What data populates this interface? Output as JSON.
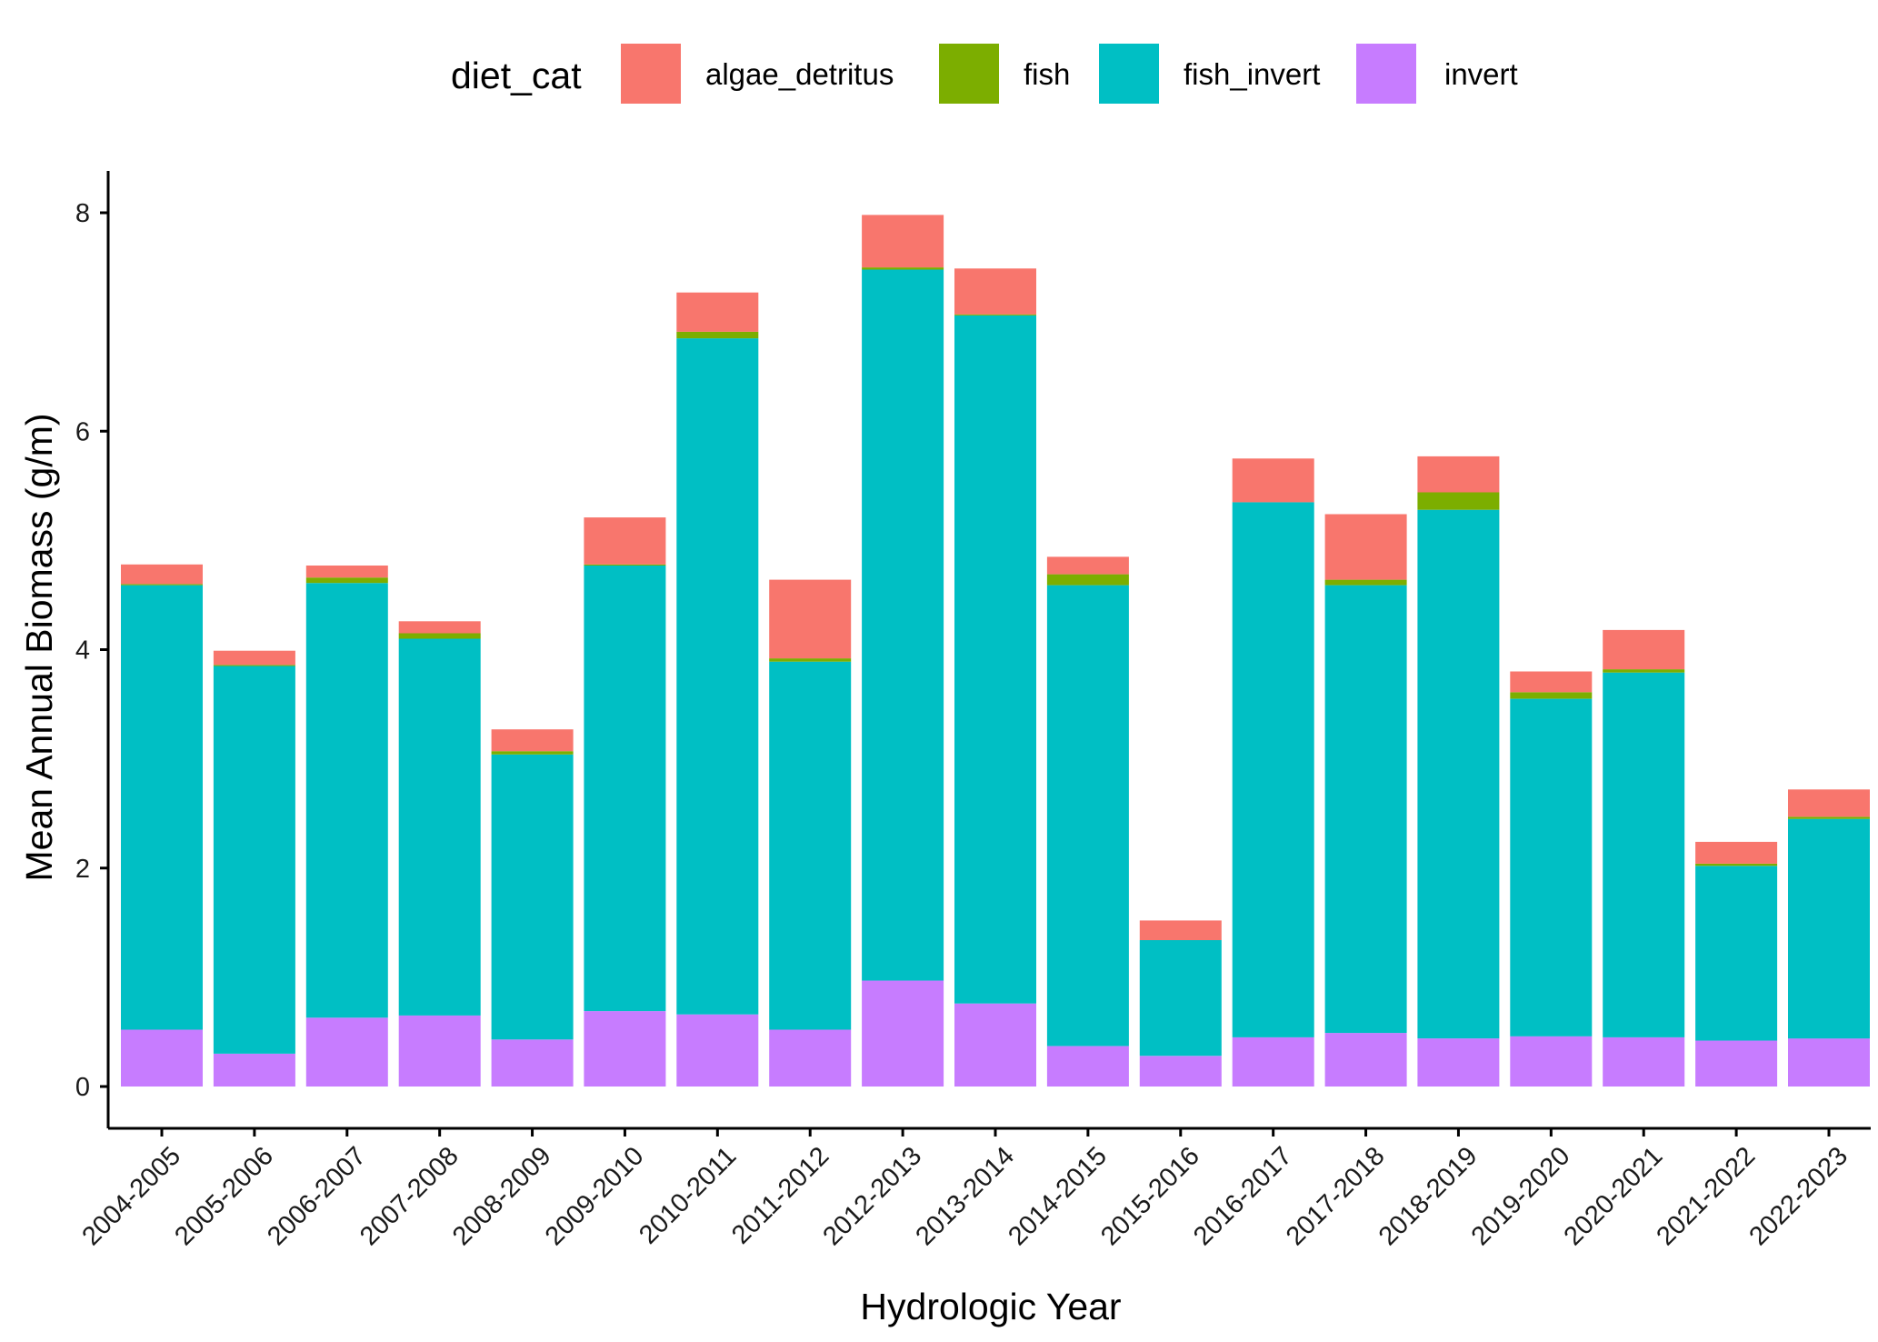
{
  "chart_data": {
    "type": "bar",
    "stacked": true,
    "title": "",
    "xlabel": "Hydrologic Year",
    "ylabel": "Mean Annual Biomass (g/m)",
    "ylim": [
      -0.35,
      8.35
    ],
    "yticks": [
      0,
      2,
      4,
      6,
      8
    ],
    "grid": false,
    "legend": {
      "title": "diet_cat",
      "position": "top",
      "entries": [
        "algae_detritus",
        "fish",
        "fish_invert",
        "invert"
      ]
    },
    "colors": {
      "algae_detritus": "#F8766D",
      "fish": "#7CAE00",
      "fish_invert": "#00BFC4",
      "invert": "#C77CFF"
    },
    "categories": [
      "2004-2005",
      "2005-2006",
      "2006-2007",
      "2007-2008",
      "2008-2009",
      "2009-2010",
      "2010-2011",
      "2011-2012",
      "2012-2013",
      "2013-2014",
      "2014-2015",
      "2015-2016",
      "2016-2017",
      "2017-2018",
      "2018-2019",
      "2019-2020",
      "2020-2021",
      "2021-2022",
      "2022-2023"
    ],
    "series": [
      {
        "name": "invert",
        "values": [
          0.52,
          0.3,
          0.63,
          0.65,
          0.43,
          0.69,
          0.66,
          0.52,
          0.97,
          0.76,
          0.37,
          0.28,
          0.45,
          0.49,
          0.44,
          0.46,
          0.45,
          0.42,
          0.44
        ]
      },
      {
        "name": "fish_invert",
        "values": [
          4.07,
          3.55,
          3.98,
          3.45,
          2.61,
          4.08,
          6.19,
          3.37,
          6.51,
          6.3,
          4.22,
          1.06,
          4.9,
          4.1,
          4.84,
          3.09,
          3.34,
          1.6,
          2.01
        ]
      },
      {
        "name": "fish",
        "values": [
          0.01,
          0.01,
          0.05,
          0.05,
          0.03,
          0.01,
          0.06,
          0.03,
          0.02,
          0.01,
          0.1,
          0.0,
          0.0,
          0.05,
          0.16,
          0.06,
          0.03,
          0.02,
          0.02
        ]
      },
      {
        "name": "algae_detritus",
        "values": [
          0.18,
          0.13,
          0.11,
          0.11,
          0.2,
          0.43,
          0.36,
          0.72,
          0.48,
          0.42,
          0.16,
          0.18,
          0.4,
          0.6,
          0.33,
          0.19,
          0.36,
          0.2,
          0.25
        ]
      }
    ]
  }
}
